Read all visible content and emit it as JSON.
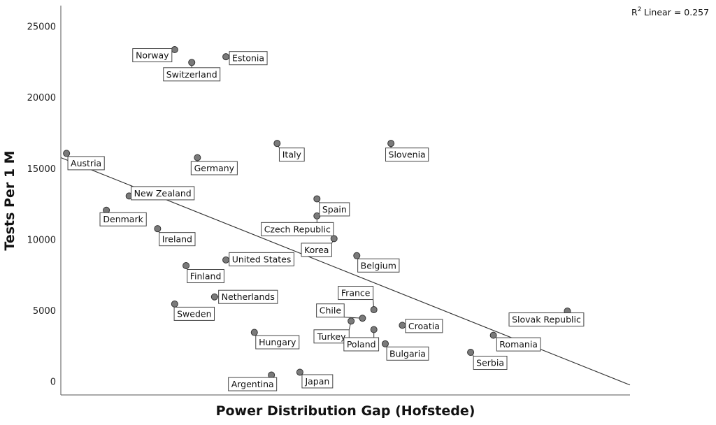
{
  "chart_data": {
    "type": "scatter",
    "xlabel": "Power Distribution Gap (Hofstede)",
    "ylabel": "Tests Per 1 M",
    "r2_label": "Linear = 0.257",
    "yticks": [
      0,
      5000,
      10000,
      15000,
      20000,
      25000
    ],
    "ylim": [
      -900,
      26500
    ],
    "fit_line": {
      "x": [
        0,
        100
      ],
      "y": [
        15800,
        -200
      ]
    },
    "points": [
      {
        "name": "Austria",
        "x": 1,
        "y": 16100
      },
      {
        "name": "Norway",
        "x": 20,
        "y": 23400
      },
      {
        "name": "Switzerland",
        "x": 23,
        "y": 22500
      },
      {
        "name": "Estonia",
        "x": 29,
        "y": 22900
      },
      {
        "name": "Germany",
        "x": 24,
        "y": 15800
      },
      {
        "name": "Italy",
        "x": 38,
        "y": 16800
      },
      {
        "name": "Slovenia",
        "x": 58,
        "y": 16800
      },
      {
        "name": "New Zealand",
        "x": 12,
        "y": 13100
      },
      {
        "name": "Denmark",
        "x": 8,
        "y": 12100
      },
      {
        "name": "Spain",
        "x": 45,
        "y": 12900
      },
      {
        "name": "Czech Republic",
        "x": 45,
        "y": 11700
      },
      {
        "name": "Ireland",
        "x": 17,
        "y": 10800
      },
      {
        "name": "Korea",
        "x": 48,
        "y": 10100
      },
      {
        "name": "United States",
        "x": 29,
        "y": 8600
      },
      {
        "name": "Belgium",
        "x": 52,
        "y": 8900
      },
      {
        "name": "Finland",
        "x": 22,
        "y": 8200
      },
      {
        "name": "France",
        "x": 55,
        "y": 5100
      },
      {
        "name": "Netherlands",
        "x": 27,
        "y": 6000
      },
      {
        "name": "Sweden",
        "x": 20,
        "y": 5500
      },
      {
        "name": "Chile",
        "x": 53,
        "y": 4500
      },
      {
        "name": "Turkey",
        "x": 51,
        "y": 4300
      },
      {
        "name": "Croatia",
        "x": 60,
        "y": 4000
      },
      {
        "name": "Hungary",
        "x": 34,
        "y": 3500
      },
      {
        "name": "Poland",
        "x": 55,
        "y": 3700
      },
      {
        "name": "Bulgaria",
        "x": 57,
        "y": 2700
      },
      {
        "name": "Slovak Republic",
        "x": 89,
        "y": 5000
      },
      {
        "name": "Romania",
        "x": 76,
        "y": 3300
      },
      {
        "name": "Serbia",
        "x": 72,
        "y": 2100
      },
      {
        "name": "Argentina",
        "x": 37,
        "y": 500
      },
      {
        "name": "Japan",
        "x": 42,
        "y": 700
      }
    ]
  }
}
